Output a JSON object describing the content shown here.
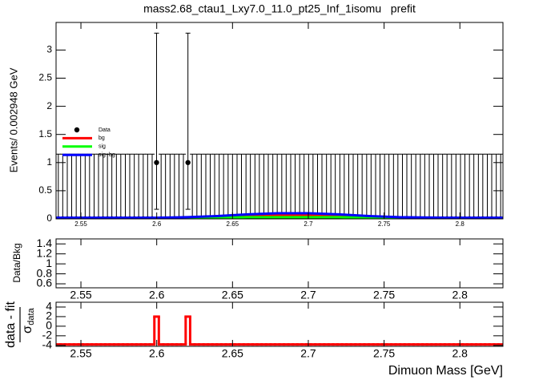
{
  "chart_data": [
    {
      "type": "errorbar",
      "title": "mass2.68_ctau1_Lxy7.0_11.0_pt25_Inf_1isomu   prefit",
      "ylabel": "Events/ 0.002948 GeV",
      "xlim": [
        2.5336,
        2.8284
      ],
      "ylim": [
        0,
        3.49
      ],
      "xticks": [
        2.55,
        2.6,
        2.65,
        2.7,
        2.75,
        2.8
      ],
      "yticks": [
        0,
        0.5,
        1,
        1.5,
        2,
        2.5,
        3
      ],
      "legend": "left",
      "series": [
        {
          "name": "Data",
          "color": "#000000",
          "x": [
            2.5351,
            2.538,
            2.541,
            2.5439,
            2.5469,
            2.5498,
            2.5528,
            2.5557,
            2.5587,
            2.5616,
            2.5646,
            2.5675,
            2.5704,
            2.5734,
            2.5763,
            2.5793,
            2.5822,
            2.5852,
            2.5881,
            2.5911,
            2.594,
            2.597,
            2.5999,
            2.6029,
            2.6058,
            2.6088,
            2.6117,
            2.6147,
            2.6176,
            2.6206,
            2.6235,
            2.6265,
            2.6294,
            2.6324,
            2.6353,
            2.6382,
            2.6412,
            2.6441,
            2.6471,
            2.65,
            2.653,
            2.6559,
            2.6589,
            2.6618,
            2.6648,
            2.6677,
            2.6707,
            2.6736,
            2.6766,
            2.6795,
            2.6825,
            2.6854,
            2.6884,
            2.6913,
            2.6943,
            2.6972,
            2.7002,
            2.7031,
            2.7061,
            2.709,
            2.712,
            2.7149,
            2.7178,
            2.7208,
            2.7237,
            2.7267,
            2.7296,
            2.7326,
            2.7355,
            2.7385,
            2.7414,
            2.7444,
            2.7473,
            2.7503,
            2.7532,
            2.7562,
            2.7591,
            2.7621,
            2.765,
            2.768,
            2.7709,
            2.7739,
            2.7768,
            2.7798,
            2.7827,
            2.7856,
            2.7886,
            2.7915,
            2.7945,
            2.7974,
            2.8004,
            2.8033,
            2.8063,
            2.8092,
            2.8122,
            2.8151,
            2.8181,
            2.821,
            2.824,
            2.8269
          ],
          "values": [
            0,
            0,
            0,
            0,
            0,
            0,
            0,
            0,
            0,
            0,
            0,
            0,
            0,
            0,
            0,
            0,
            0,
            0,
            0,
            0,
            0,
            0,
            1,
            0,
            0,
            0,
            0,
            0,
            0,
            1,
            0,
            0,
            0,
            0,
            0,
            0,
            0,
            0,
            0,
            0,
            0,
            0,
            0,
            0,
            0,
            0,
            0,
            0,
            0,
            0,
            0,
            0,
            0,
            0,
            0,
            0,
            0,
            0,
            0,
            0,
            0,
            0,
            0,
            0,
            0,
            0,
            0,
            0,
            0,
            0,
            0,
            0,
            0,
            0,
            0,
            0,
            0,
            0,
            0,
            0,
            0,
            0,
            0,
            0,
            0,
            0,
            0,
            0,
            0,
            0,
            0,
            0,
            0,
            0,
            0,
            0,
            0,
            0,
            0,
            0
          ],
          "error_low": [
            0,
            0,
            0,
            0,
            0,
            0,
            0,
            0,
            0,
            0,
            0,
            0,
            0,
            0,
            0,
            0,
            0,
            0,
            0,
            0,
            0,
            0,
            0.83,
            0,
            0,
            0,
            0,
            0,
            0,
            0.83,
            0,
            0,
            0,
            0,
            0,
            0,
            0,
            0,
            0,
            0,
            0,
            0,
            0,
            0,
            0,
            0,
            0,
            0,
            0,
            0,
            0,
            0,
            0,
            0,
            0,
            0,
            0,
            0,
            0,
            0,
            0,
            0,
            0,
            0,
            0,
            0,
            0,
            0,
            0,
            0,
            0,
            0,
            0,
            0,
            0,
            0,
            0,
            0,
            0,
            0,
            0,
            0,
            0,
            0,
            0,
            0,
            0,
            0,
            0,
            0,
            0,
            0,
            0,
            0,
            0,
            0,
            0,
            0,
            0,
            0
          ],
          "error_high": [
            1.15,
            1.15,
            1.15,
            1.15,
            1.15,
            1.15,
            1.15,
            1.15,
            1.15,
            1.15,
            1.15,
            1.15,
            1.15,
            1.15,
            1.15,
            1.15,
            1.15,
            1.15,
            1.15,
            1.15,
            1.15,
            1.15,
            2.3,
            1.15,
            1.15,
            1.15,
            1.15,
            1.15,
            1.15,
            2.3,
            1.15,
            1.15,
            1.15,
            1.15,
            1.15,
            1.15,
            1.15,
            1.15,
            1.15,
            1.15,
            1.15,
            1.15,
            1.15,
            1.15,
            1.15,
            1.15,
            1.15,
            1.15,
            1.15,
            1.15,
            1.15,
            1.15,
            1.15,
            1.15,
            1.15,
            1.15,
            1.15,
            1.15,
            1.15,
            1.15,
            1.15,
            1.15,
            1.15,
            1.15,
            1.15,
            1.15,
            1.15,
            1.15,
            1.15,
            1.15,
            1.15,
            1.15,
            1.15,
            1.15,
            1.15,
            1.15,
            1.15,
            1.15,
            1.15,
            1.15,
            1.15,
            1.15,
            1.15,
            1.15,
            1.15,
            1.15,
            1.15,
            1.15,
            1.15,
            1.15,
            1.15,
            1.15,
            1.15,
            1.15,
            1.15,
            1.15,
            1.15,
            1.15,
            1.15,
            1.15
          ]
        },
        {
          "name": "bg",
          "color": "#ff0000",
          "x": [
            2.5336,
            2.57,
            2.6,
            2.62,
            2.64,
            2.66,
            2.68,
            2.7,
            2.72,
            2.74,
            2.76,
            2.79,
            2.8284
          ],
          "values": [
            0,
            0,
            0,
            0.01,
            0.03,
            0.05,
            0.06,
            0.06,
            0.05,
            0.03,
            0.01,
            0,
            0
          ]
        },
        {
          "name": "sig",
          "color": "#00ff00",
          "x": [
            2.5336,
            2.57,
            2.6,
            2.62,
            2.64,
            2.66,
            2.68,
            2.7,
            2.72,
            2.74,
            2.76,
            2.79,
            2.8284
          ],
          "values": [
            0.01,
            0.01,
            0.01,
            0.01,
            0.02,
            0.03,
            0.03,
            0.03,
            0.03,
            0.02,
            0.01,
            0.01,
            0.01
          ]
        },
        {
          "name": "sig+bg",
          "color": "#0000ff",
          "x": [
            2.5336,
            2.57,
            2.6,
            2.62,
            2.64,
            2.66,
            2.68,
            2.7,
            2.72,
            2.74,
            2.76,
            2.79,
            2.8284
          ],
          "values": [
            0.02,
            0.02,
            0.02,
            0.03,
            0.05,
            0.08,
            0.1,
            0.1,
            0.08,
            0.05,
            0.03,
            0.02,
            0.02
          ]
        }
      ]
    },
    {
      "type": "ratio",
      "ylabel": "Data/Bkg",
      "xlim": [
        2.5336,
        2.8284
      ],
      "ylim": [
        0.52,
        1.5
      ],
      "xticks": [
        2.55,
        2.6,
        2.65,
        2.7,
        2.75,
        2.8
      ],
      "yticks": [
        0.6,
        0.8,
        1,
        1.2,
        1.4
      ]
    },
    {
      "type": "step",
      "ylabel_top": "data - fit",
      "ylabel_bottom": "σ",
      "ylabel_sub": "data",
      "xlabel": "Dimuon Mass [GeV]",
      "xlim": [
        2.5336,
        2.8284
      ],
      "ylim": [
        -4.2,
        5
      ],
      "xticks": [
        2.55,
        2.6,
        2.65,
        2.7,
        2.75,
        2.8
      ],
      "yticks": [
        4,
        2,
        0,
        -2,
        -4
      ],
      "color": "#ff0000",
      "x": [
        2.5351,
        2.538,
        2.541,
        2.5439,
        2.5469,
        2.5498,
        2.5528,
        2.5557,
        2.5587,
        2.5616,
        2.5646,
        2.5675,
        2.5704,
        2.5734,
        2.5763,
        2.5793,
        2.5822,
        2.5852,
        2.5881,
        2.5911,
        2.594,
        2.597,
        2.5999,
        2.6029,
        2.6058,
        2.6088,
        2.6117,
        2.6147,
        2.6176,
        2.6206,
        2.6235,
        2.6265,
        2.6294,
        2.6324,
        2.6353,
        2.6382,
        2.6412,
        2.6441,
        2.6471,
        2.65,
        2.653,
        2.6559,
        2.6589,
        2.6618,
        2.6648,
        2.6677,
        2.6707,
        2.6736,
        2.6766,
        2.6795,
        2.6825,
        2.6854,
        2.6884,
        2.6913,
        2.6943,
        2.6972,
        2.7002,
        2.7031,
        2.7061,
        2.709,
        2.712,
        2.7149,
        2.7178,
        2.7208,
        2.7237,
        2.7267,
        2.7296,
        2.7326,
        2.7355,
        2.7385,
        2.7414,
        2.7444,
        2.7473,
        2.7503,
        2.7532,
        2.7562,
        2.7591,
        2.7621,
        2.765,
        2.768,
        2.7709,
        2.7739,
        2.7768,
        2.7798,
        2.7827,
        2.7856,
        2.7886,
        2.7915,
        2.7945,
        2.7974,
        2.8004,
        2.8033,
        2.8063,
        2.8092,
        2.8122,
        2.8151,
        2.8181,
        2.821,
        2.824,
        2.8269
      ],
      "values": [
        -3.8,
        -3.8,
        -3.8,
        -3.8,
        -3.8,
        -3.8,
        -3.8,
        -3.8,
        -3.8,
        -3.8,
        -3.8,
        -3.8,
        -3.8,
        -3.8,
        -3.8,
        -3.8,
        -3.8,
        -3.8,
        -3.8,
        -3.8,
        -3.8,
        -3.8,
        2,
        -3.8,
        -3.8,
        -3.8,
        -3.8,
        -3.8,
        -3.8,
        2,
        -3.8,
        -3.8,
        -3.8,
        -3.8,
        -3.8,
        -3.8,
        -3.8,
        -3.8,
        -3.8,
        -3.8,
        -3.8,
        -3.8,
        -3.8,
        -3.8,
        -3.8,
        -3.8,
        -3.8,
        -3.8,
        -3.8,
        -3.8,
        -3.8,
        -3.8,
        -3.8,
        -3.8,
        -3.8,
        -3.8,
        -3.8,
        -3.8,
        -3.8,
        -3.8,
        -3.8,
        -3.8,
        -3.8,
        -3.8,
        -3.8,
        -3.8,
        -3.8,
        -3.8,
        -3.8,
        -3.8,
        -3.8,
        -3.8,
        -3.8,
        -3.8,
        -3.8,
        -3.8,
        -3.8,
        -3.8,
        -3.8,
        -3.8,
        -3.8,
        -3.8,
        -3.8,
        -3.8,
        -3.8,
        -3.8,
        -3.8,
        -3.8,
        -3.8,
        -3.8,
        -3.8,
        -3.8,
        -3.8,
        -3.8,
        -3.8,
        -3.8,
        -3.8,
        -3.8,
        -3.8,
        -3.8
      ]
    }
  ]
}
